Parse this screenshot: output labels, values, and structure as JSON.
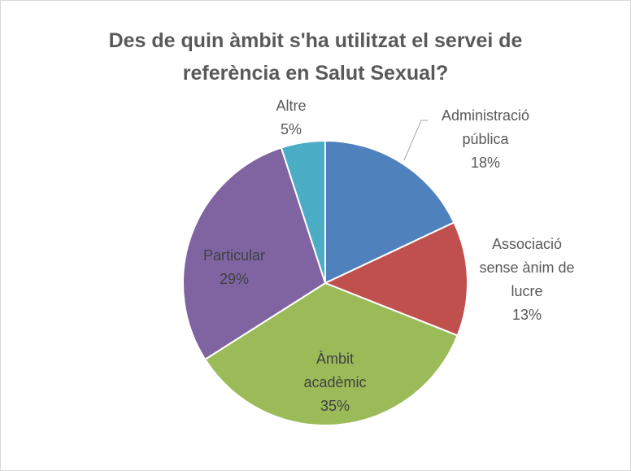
{
  "chart_data": {
    "type": "pie",
    "title": "Des de quin àmbit s'ha utilitzat el servei de referència en Salut Sexual?",
    "categories": [
      "Administració pública",
      "Associació sense ànim de lucre",
      "Àmbit acadèmic",
      "Particular",
      "Altre"
    ],
    "values": [
      18,
      13,
      35,
      29,
      5
    ],
    "value_labels": [
      "18%",
      "13%",
      "35%",
      "29%",
      "5%"
    ],
    "colors": [
      "#4f81bd",
      "#c0504d",
      "#9bbb59",
      "#8064a2",
      "#4bacc6"
    ]
  }
}
